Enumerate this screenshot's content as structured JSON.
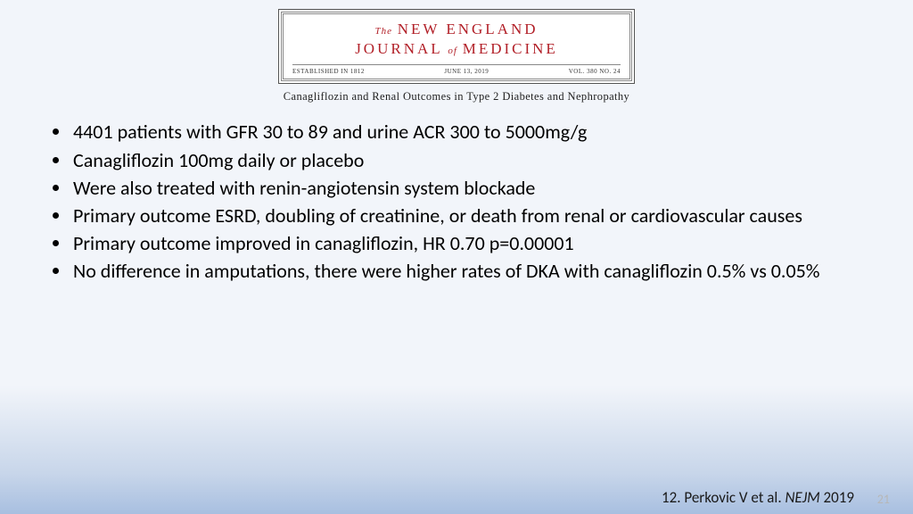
{
  "journal": {
    "the": "The",
    "line1": "NEW ENGLAND",
    "line2a": "JOURNAL",
    "of": "of",
    "line2b": "MEDICINE",
    "established": "ESTABLISHED IN 1812",
    "date": "JUNE 13, 2019",
    "volume": "VOL. 380  NO. 24",
    "article_title": "Canagliflozin and Renal Outcomes in Type 2 Diabetes and Nephropathy"
  },
  "bullets": [
    "4401 patients with GFR 30 to 89 and urine ACR 300 to 5000mg/g",
    "Canagliflozin 100mg daily or placebo",
    "Were also treated with renin-angiotensin system blockade",
    "Primary outcome ESRD, doubling of creatinine, or death from renal or cardiovascular causes",
    "Primary outcome improved in canagliflozin, HR 0.70 p=0.00001",
    "No difference in amputations, there were higher rates of DKA with canagliflozin 0.5% vs 0.05%"
  ],
  "citation": {
    "ref": "12. Perkovic V et al. ",
    "journal": "NEJM",
    "year": " 2019"
  },
  "slide_number": "21",
  "colors": {
    "background_top": "#f2f5fa",
    "background_bottom": "#a8bfe0",
    "journal_red": "#b22028",
    "text": "#000000",
    "slidenum": "#b7b7b7"
  }
}
